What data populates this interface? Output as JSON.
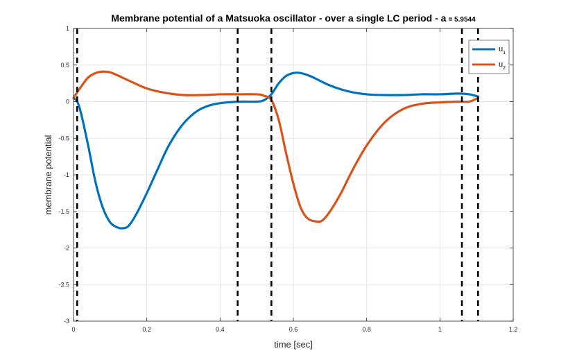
{
  "chart_data": {
    "type": "line",
    "title": "Membrane potential of a Matsuoka oscillator - over a single LC period - a",
    "title_suffix": "= 5.9544",
    "xlabel": "time [sec]",
    "ylabel": "membrane potential",
    "xlim": [
      0,
      1.2
    ],
    "ylim": [
      -3,
      1
    ],
    "xticks": [
      0,
      0.2,
      0.4,
      0.6,
      0.8,
      1,
      1.2
    ],
    "xtick_labels": [
      "0",
      "0.2",
      "0.4",
      "0.6",
      "0.8",
      "1",
      "1.2"
    ],
    "yticks": [
      1,
      0.5,
      0,
      -0.5,
      -1,
      -1.5,
      -2,
      -2.5,
      -3
    ],
    "ytick_labels": [
      "1",
      "0.5",
      "0",
      "-0.5",
      "-1",
      "-1.5",
      "-2",
      "-2.5",
      "-3"
    ],
    "grid": true,
    "legend_position": "top-right",
    "vlines": [
      0.01,
      0.448,
      0.54,
      1.06,
      1.104
    ],
    "vline_color": "#000000",
    "series": [
      {
        "name": "u",
        "subscript": "1",
        "color": "#0072BD",
        "x": [
          0,
          0.01,
          0.02,
          0.04,
          0.06,
          0.08,
          0.1,
          0.12,
          0.135,
          0.15,
          0.17,
          0.2,
          0.23,
          0.26,
          0.3,
          0.34,
          0.38,
          0.42,
          0.46,
          0.5,
          0.52,
          0.54,
          0.56,
          0.58,
          0.6,
          0.62,
          0.65,
          0.7,
          0.75,
          0.8,
          0.85,
          0.9,
          0.95,
          1.0,
          1.05,
          1.08,
          1.104
        ],
        "y": [
          0.05,
          0.0,
          -0.15,
          -0.6,
          -1.1,
          -1.45,
          -1.65,
          -1.72,
          -1.73,
          -1.7,
          -1.55,
          -1.25,
          -0.92,
          -0.6,
          -0.3,
          -0.12,
          -0.04,
          -0.01,
          0.0,
          0.0,
          0.02,
          0.1,
          0.25,
          0.35,
          0.39,
          0.39,
          0.34,
          0.22,
          0.14,
          0.1,
          0.09,
          0.09,
          0.1,
          0.1,
          0.11,
          0.1,
          0.07
        ]
      },
      {
        "name": "u",
        "subscript": "2",
        "color": "#D95319",
        "x": [
          0,
          0.02,
          0.04,
          0.06,
          0.08,
          0.1,
          0.12,
          0.15,
          0.2,
          0.25,
          0.3,
          0.35,
          0.4,
          0.45,
          0.5,
          0.52,
          0.54,
          0.56,
          0.58,
          0.6,
          0.62,
          0.64,
          0.665,
          0.68,
          0.7,
          0.73,
          0.76,
          0.8,
          0.85,
          0.9,
          0.95,
          1.0,
          1.05,
          1.08,
          1.104
        ],
        "y": [
          0.05,
          0.2,
          0.33,
          0.39,
          0.41,
          0.4,
          0.36,
          0.29,
          0.18,
          0.12,
          0.09,
          0.09,
          0.1,
          0.1,
          0.1,
          0.08,
          0.02,
          -0.25,
          -0.7,
          -1.12,
          -1.45,
          -1.6,
          -1.64,
          -1.62,
          -1.5,
          -1.25,
          -0.95,
          -0.6,
          -0.28,
          -0.1,
          -0.03,
          -0.01,
          0.0,
          0.0,
          0.05
        ]
      }
    ]
  }
}
